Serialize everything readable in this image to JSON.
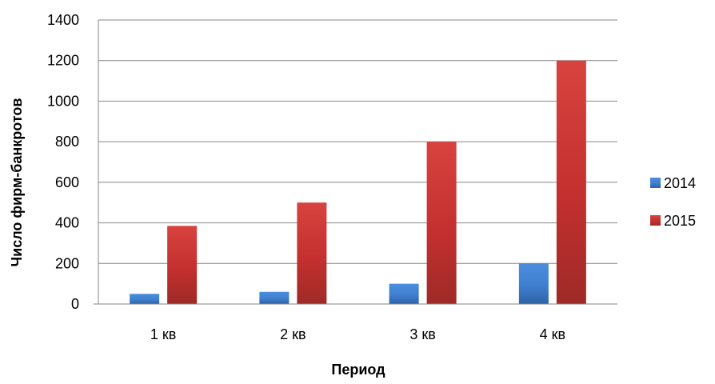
{
  "chart_data": {
    "type": "bar",
    "categories": [
      "1 кв",
      "2 кв",
      "3 кв",
      "4 кв"
    ],
    "series": [
      {
        "name": "2014",
        "values": [
          50,
          60,
          100,
          200
        ],
        "color": "#3F7FCF"
      },
      {
        "name": "2015",
        "values": [
          385,
          500,
          800,
          1200
        ],
        "color": "#C4302F"
      }
    ],
    "xlabel": "Период",
    "ylabel": "Число фирм-банкротов",
    "ylim": [
      0,
      1400
    ],
    "yticks": [
      0,
      200,
      400,
      600,
      800,
      1000,
      1200,
      1400
    ],
    "grid": true,
    "legend_position": "right"
  }
}
